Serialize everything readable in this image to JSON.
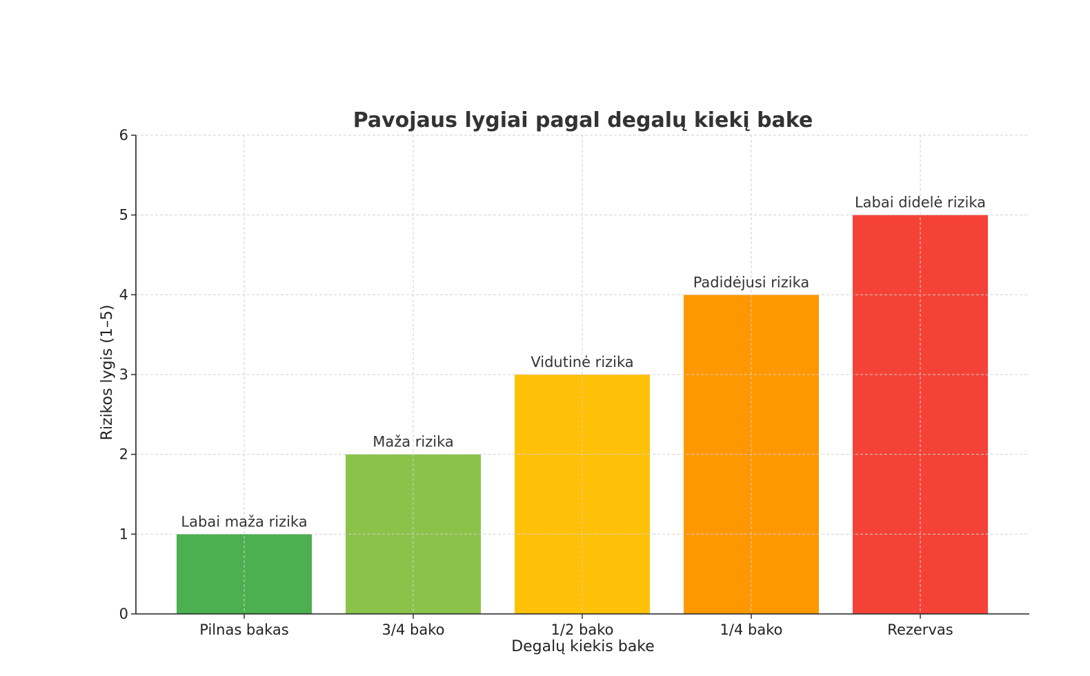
{
  "chart_data": {
    "type": "bar",
    "title": "Pavojaus lygiai pagal degalų kiekį bake",
    "xlabel": "Degalų kiekis bake",
    "ylabel": "Rizikos lygis (1–5)",
    "categories": [
      "Pilnas bakas",
      "3/4 bako",
      "1/2 bako",
      "1/4 bako",
      "Rezervas"
    ],
    "values": [
      1,
      2,
      3,
      4,
      5
    ],
    "bar_labels": [
      "Labai maža rizika",
      "Maža rizika",
      "Vidutinė rizika",
      "Padidėjusi rizika",
      "Labai didelė rizika"
    ],
    "colors": [
      "#4caf50",
      "#8bc34a",
      "#ffc107",
      "#ff9800",
      "#f44336"
    ],
    "ylim": [
      0,
      6
    ],
    "yticks": [
      "0",
      "1",
      "2",
      "3",
      "4",
      "5",
      "6"
    ],
    "grid": true
  }
}
